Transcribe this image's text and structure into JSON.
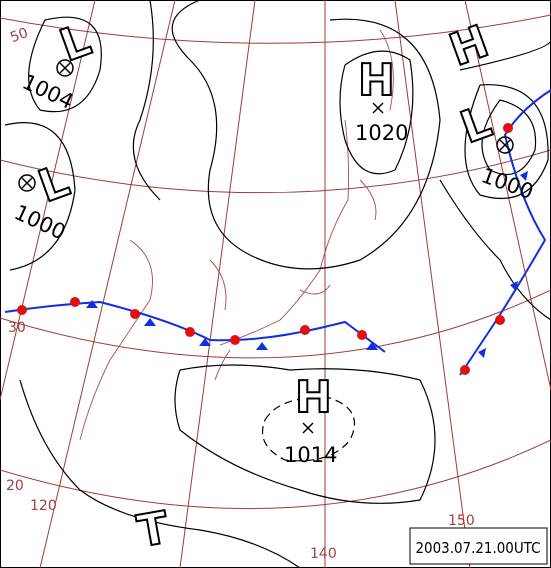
{
  "systems": [
    {
      "symbol": "L",
      "pressure": 1004
    },
    {
      "symbol": "L",
      "pressure": 1000
    },
    {
      "symbol": "H",
      "pressure": 1020
    },
    {
      "symbol": "H"
    },
    {
      "symbol": "L",
      "pressure": 1000
    },
    {
      "symbol": "H",
      "pressure": 1014
    },
    {
      "symbol": "T"
    }
  ],
  "grid_labels": {
    "lat": [
      "50",
      "30",
      "20"
    ],
    "lon": [
      "120",
      "140",
      "150"
    ]
  },
  "timestamp": "2003.07.21.00UTC"
}
